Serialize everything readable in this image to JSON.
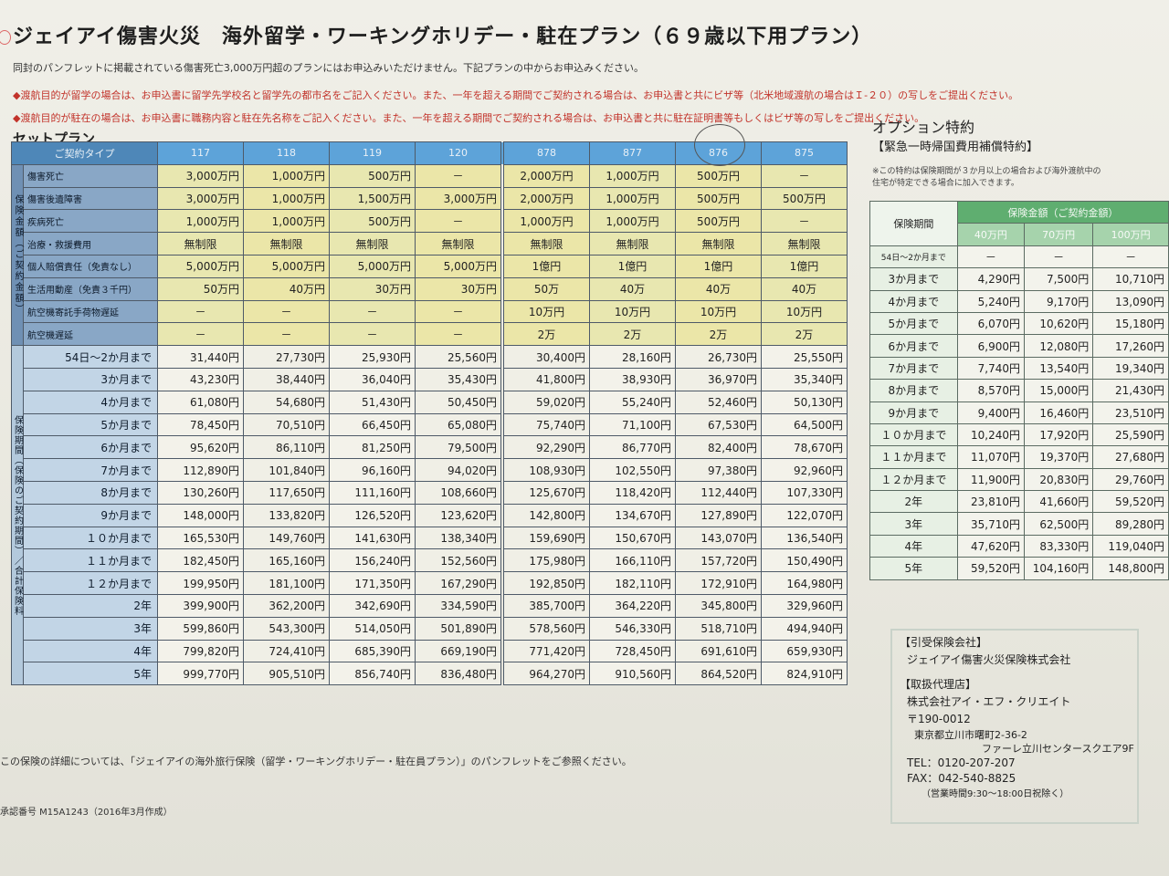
{
  "header": {
    "title": "ジェイアイ傷害火災　海外留学・ワーキングホリデー・駐在プラン（６９歳以下用プラン）"
  },
  "notices": [
    "同封のパンフレットに掲載されている傷害死亡3,000万円超のプランにはお申込みいただけません。下記プランの中からお申込みください。",
    "◆渡航目的が留学の場合は、お申込書に留学先学校名と留学先の都市名をご記入ください。また、一年を超える期間でご契約される場合は、お申込書と共にビザ等（北米地域渡航の場合はＩ-２０）の写しをご提出ください。",
    "◆渡航目的が駐在の場合は、お申込書に職務内容と駐在先名称をご記入ください。また、一年を超える期間でご契約される場合は、お申込書と共に駐在証明書等もしくはビザ等の写しをご提出ください。"
  ],
  "set_plan": {
    "heading": "セットプラン",
    "type_label": "ご契約タイプ",
    "plans": [
      "117",
      "118",
      "119",
      "120",
      "878",
      "877",
      "876",
      "875"
    ],
    "coverage_group_label": "保険金額（ご契約金額）",
    "coverage_rows": [
      {
        "label": "傷害死亡",
        "values": [
          "3,000万円",
          "1,000万円",
          "500万円",
          "－",
          "2,000万円",
          "1,000万円",
          "500万円",
          "－"
        ]
      },
      {
        "label": "傷害後遺障害",
        "values": [
          "3,000万円",
          "1,000万円",
          "1,500万円",
          "3,000万円",
          "2,000万円",
          "1,000万円",
          "500万円",
          "500万円"
        ]
      },
      {
        "label": "疾病死亡",
        "values": [
          "1,000万円",
          "1,000万円",
          "500万円",
          "－",
          "1,000万円",
          "1,000万円",
          "500万円",
          "－"
        ]
      },
      {
        "label": "治療・救援費用",
        "values": [
          "無制限",
          "無制限",
          "無制限",
          "無制限",
          "無制限",
          "無制限",
          "無制限",
          "無制限"
        ]
      },
      {
        "label": "個人賠償責任（免責なし）",
        "values": [
          "5,000万円",
          "5,000万円",
          "5,000万円",
          "5,000万円",
          "1億円",
          "1億円",
          "1億円",
          "1億円"
        ]
      },
      {
        "label": "生活用動産（免責３千円）",
        "values": [
          "50万円",
          "40万円",
          "30万円",
          "30万円",
          "50万",
          "40万",
          "40万",
          "40万"
        ]
      },
      {
        "label": "航空機寄託手荷物遅延",
        "values": [
          "－",
          "－",
          "－",
          "－",
          "10万円",
          "10万円",
          "10万円",
          "10万円"
        ]
      },
      {
        "label": "航空機遅延",
        "values": [
          "－",
          "－",
          "－",
          "－",
          "2万",
          "2万",
          "2万",
          "2万"
        ]
      }
    ],
    "premium_group_label": "保険期間（保険のご契約期間）／合計保険料",
    "premium_rows": [
      {
        "period": "54日～2か月まで",
        "values": [
          "31,440円",
          "27,730円",
          "25,930円",
          "25,560円",
          "30,400円",
          "28,160円",
          "26,730円",
          "25,550円"
        ]
      },
      {
        "period": "3か月まで",
        "values": [
          "43,230円",
          "38,440円",
          "36,040円",
          "35,430円",
          "41,800円",
          "38,930円",
          "36,970円",
          "35,340円"
        ]
      },
      {
        "period": "4か月まで",
        "values": [
          "61,080円",
          "54,680円",
          "51,430円",
          "50,450円",
          "59,020円",
          "55,240円",
          "52,460円",
          "50,130円"
        ]
      },
      {
        "period": "5か月まで",
        "values": [
          "78,450円",
          "70,510円",
          "66,450円",
          "65,080円",
          "75,740円",
          "71,100円",
          "67,530円",
          "64,500円"
        ]
      },
      {
        "period": "6か月まで",
        "values": [
          "95,620円",
          "86,110円",
          "81,250円",
          "79,500円",
          "92,290円",
          "86,770円",
          "82,400円",
          "78,670円"
        ]
      },
      {
        "period": "7か月まで",
        "values": [
          "112,890円",
          "101,840円",
          "96,160円",
          "94,020円",
          "108,930円",
          "102,550円",
          "97,380円",
          "92,960円"
        ]
      },
      {
        "period": "8か月まで",
        "values": [
          "130,260円",
          "117,650円",
          "111,160円",
          "108,660円",
          "125,670円",
          "118,420円",
          "112,440円",
          "107,330円"
        ]
      },
      {
        "period": "9か月まで",
        "values": [
          "148,000円",
          "133,820円",
          "126,520円",
          "123,620円",
          "142,800円",
          "134,670円",
          "127,890円",
          "122,070円"
        ]
      },
      {
        "period": "１０か月まで",
        "values": [
          "165,530円",
          "149,760円",
          "141,630円",
          "138,340円",
          "159,690円",
          "150,670円",
          "143,070円",
          "136,540円"
        ]
      },
      {
        "period": "１１か月まで",
        "values": [
          "182,450円",
          "165,160円",
          "156,240円",
          "152,560円",
          "175,980円",
          "166,110円",
          "157,720円",
          "150,490円"
        ]
      },
      {
        "period": "１２か月まで",
        "values": [
          "199,950円",
          "181,100円",
          "171,350円",
          "167,290円",
          "192,850円",
          "182,110円",
          "172,910円",
          "164,980円"
        ]
      },
      {
        "period": "2年",
        "values": [
          "399,900円",
          "362,200円",
          "342,690円",
          "334,590円",
          "385,700円",
          "364,220円",
          "345,800円",
          "329,960円"
        ]
      },
      {
        "period": "3年",
        "values": [
          "599,860円",
          "543,300円",
          "514,050円",
          "501,890円",
          "578,560円",
          "546,330円",
          "518,710円",
          "494,940円"
        ]
      },
      {
        "period": "4年",
        "values": [
          "799,820円",
          "724,410円",
          "685,390円",
          "669,190円",
          "771,420円",
          "728,450円",
          "691,610円",
          "659,930円"
        ]
      },
      {
        "period": "5年",
        "values": [
          "999,770円",
          "905,510円",
          "856,740円",
          "836,480円",
          "964,270円",
          "910,560円",
          "864,520円",
          "824,910円"
        ]
      }
    ]
  },
  "option": {
    "heading": "オプション特約",
    "subheading": "【緊急一時帰国費用補償特約】",
    "note": [
      "※この特約は保険期間が３か月以上の場合および海外渡航中の",
      "住宅が特定できる場合に加入できます。"
    ],
    "period_label": "保険期間",
    "amount_label": "保険金額（ご契約金額）",
    "amounts": [
      "40万円",
      "70万円",
      "100万円"
    ],
    "rows": [
      {
        "period": "54日～2か月まで",
        "values": [
          "－",
          "－",
          "－"
        ]
      },
      {
        "period": "3か月まで",
        "values": [
          "4,290円",
          "7,500円",
          "10,710円"
        ]
      },
      {
        "period": "4か月まで",
        "values": [
          "5,240円",
          "9,170円",
          "13,090円"
        ]
      },
      {
        "period": "5か月まで",
        "values": [
          "6,070円",
          "10,620円",
          "15,180円"
        ]
      },
      {
        "period": "6か月まで",
        "values": [
          "6,900円",
          "12,080円",
          "17,260円"
        ]
      },
      {
        "period": "7か月まで",
        "values": [
          "7,740円",
          "13,540円",
          "19,340円"
        ]
      },
      {
        "period": "8か月まで",
        "values": [
          "8,570円",
          "15,000円",
          "21,430円"
        ]
      },
      {
        "period": "9か月まで",
        "values": [
          "9,400円",
          "16,460円",
          "23,510円"
        ]
      },
      {
        "period": "１０か月まで",
        "values": [
          "10,240円",
          "17,920円",
          "25,590円"
        ]
      },
      {
        "period": "１１か月まで",
        "values": [
          "11,070円",
          "19,370円",
          "27,680円"
        ]
      },
      {
        "period": "１２か月まで",
        "values": [
          "11,900円",
          "20,830円",
          "29,760円"
        ]
      },
      {
        "period": "2年",
        "values": [
          "23,810円",
          "41,660円",
          "59,520円"
        ]
      },
      {
        "period": "3年",
        "values": [
          "35,710円",
          "62,500円",
          "89,280円"
        ]
      },
      {
        "period": "4年",
        "values": [
          "47,620円",
          "83,330円",
          "119,040円"
        ]
      },
      {
        "period": "5年",
        "values": [
          "59,520円",
          "104,160円",
          "148,800円"
        ]
      }
    ]
  },
  "info": {
    "insurer_label": "【引受保険会社】",
    "insurer_name": "ジェイアイ傷害火災保険株式会社",
    "agent_label": "【取扱代理店】",
    "agent_name": "株式会社アイ・エフ・クリエイト",
    "postal": "〒190-0012",
    "address1": "東京都立川市曙町2-36-2",
    "address2": "ファーレ立川センタースクエア9F",
    "tel": "TEL：0120-207-207",
    "fax": "FAX：042-540-8825",
    "hours": "（営業時間9:30～18:00日祝除く）"
  },
  "footer": {
    "reference": "この保険の詳細については、「ジェイアイの海外旅行保険（留学・ワーキングホリデー・駐在員プラン）」のパンフレットをご参照ください。",
    "cert": "承認番号 M15A1243（2016年3月作成）"
  }
}
